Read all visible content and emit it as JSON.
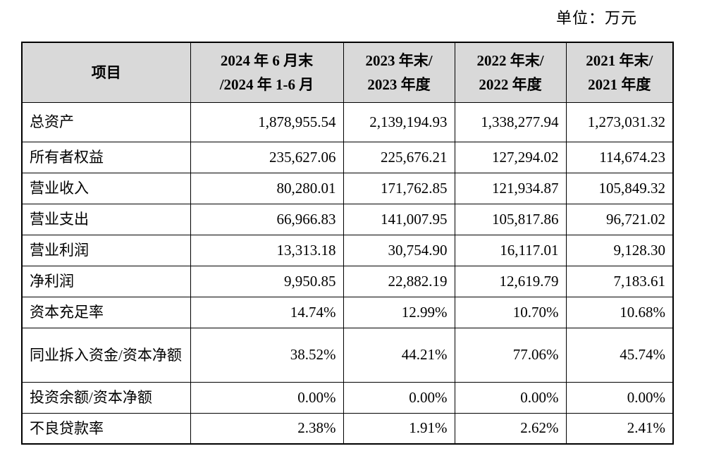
{
  "unit_label": "单位：万元",
  "headers": {
    "item": "项目",
    "col1_line1": "2024 年 6 月末",
    "col1_line2": "/2024 年 1-6 月",
    "col2_line1": "2023 年末/",
    "col2_line2": "2023 年度",
    "col3_line1": "2022 年末/",
    "col3_line2": "2022 年度",
    "col4_line1": "2021 年末/",
    "col4_line2": "2021 年度"
  },
  "rows": [
    {
      "label": "总资产",
      "v1": "1,878,955.54",
      "v2": "2,139,194.93",
      "v3": "1,338,277.94",
      "v4": "1,273,031.32"
    },
    {
      "label": "所有者权益",
      "v1": "235,627.06",
      "v2": "225,676.21",
      "v3": "127,294.02",
      "v4": "114,674.23"
    },
    {
      "label": "营业收入",
      "v1": "80,280.01",
      "v2": "171,762.85",
      "v3": "121,934.87",
      "v4": "105,849.32"
    },
    {
      "label": "营业支出",
      "v1": "66,966.83",
      "v2": "141,007.95",
      "v3": "105,817.86",
      "v4": "96,721.02"
    },
    {
      "label": "营业利润",
      "v1": "13,313.18",
      "v2": "30,754.90",
      "v3": "16,117.01",
      "v4": "9,128.30"
    },
    {
      "label": "净利润",
      "v1": "9,950.85",
      "v2": "22,882.19",
      "v3": "12,619.79",
      "v4": "7,183.61"
    },
    {
      "label": "资本充足率",
      "v1": "14.74%",
      "v2": "12.99%",
      "v3": "10.70%",
      "v4": "10.68%"
    },
    {
      "label": "同业拆入资金/资本净额",
      "v1": "38.52%",
      "v2": "44.21%",
      "v3": "77.06%",
      "v4": "45.74%"
    },
    {
      "label": "投资余额/资本净额",
      "v1": "0.00%",
      "v2": "0.00%",
      "v3": "0.00%",
      "v4": "0.00%"
    },
    {
      "label": "不良贷款率",
      "v1": "2.38%",
      "v2": "1.91%",
      "v3": "2.62%",
      "v4": "2.41%"
    }
  ]
}
